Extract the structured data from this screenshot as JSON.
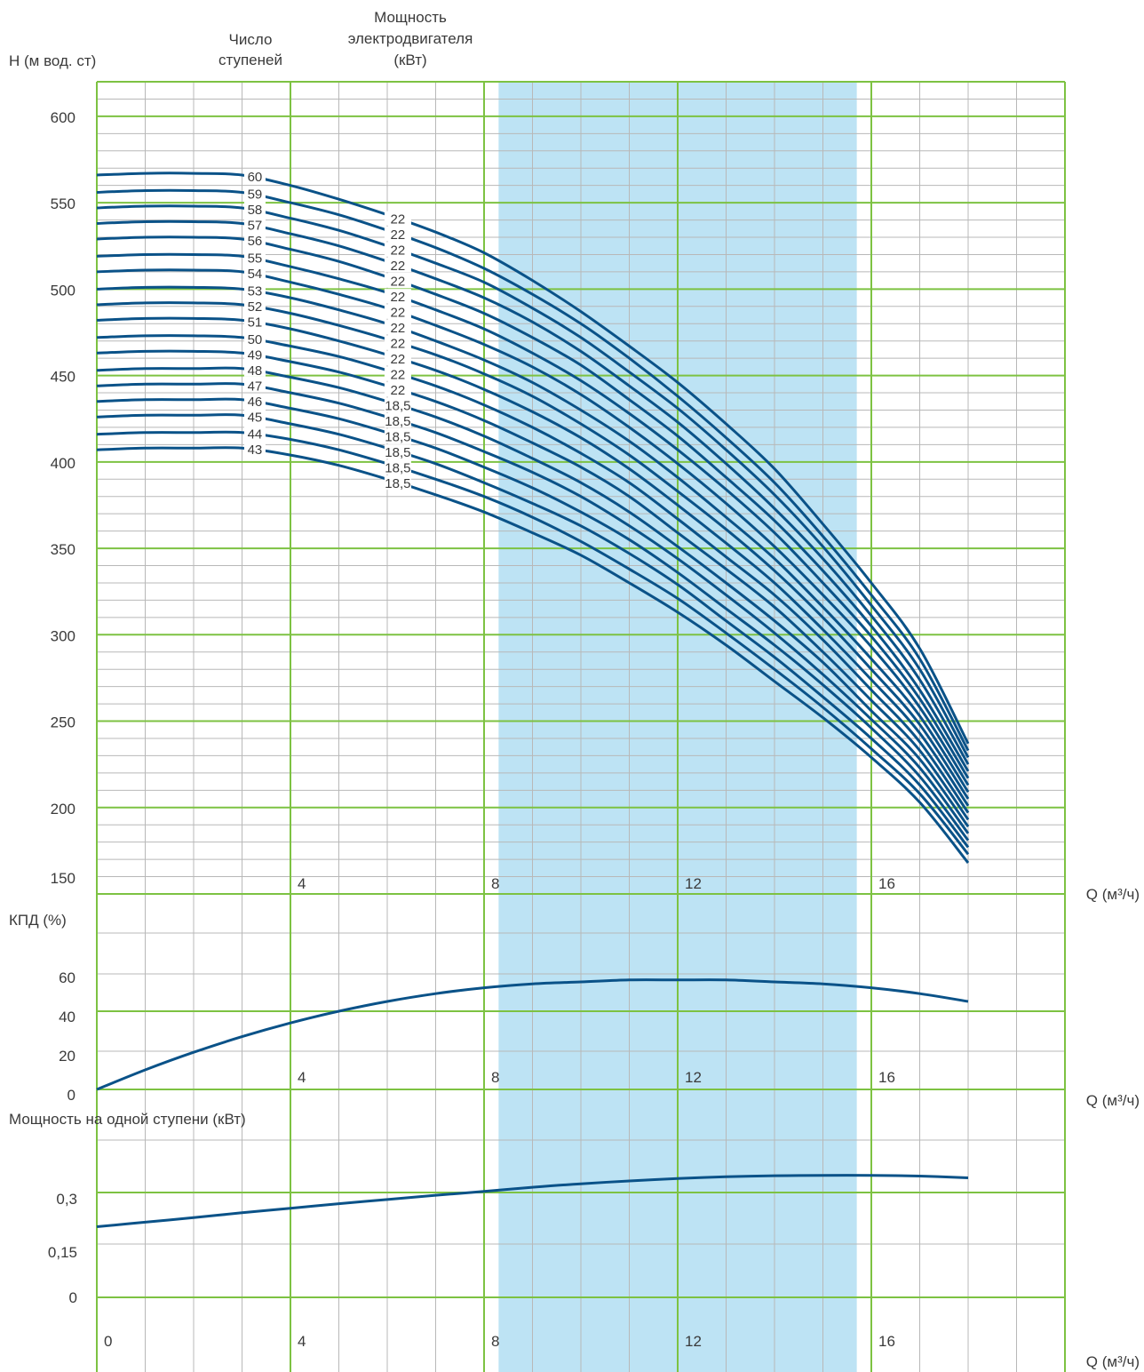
{
  "colors": {
    "curve": "#0a5288",
    "major_grid": "#7dc242",
    "minor_grid": "#b8b8b8",
    "band": "#bde3f4"
  },
  "header": {
    "stages_label": [
      "Число",
      "ступеней"
    ],
    "motor_label": [
      "Мощность",
      "электродвигателя",
      "(кВт)"
    ]
  },
  "chart_data": [
    {
      "type": "line",
      "ylabel": "H (м вод. ст)",
      "xlabel": "Q (м³/ч)",
      "xlim": [
        0,
        20
      ],
      "ylim": [
        150,
        620
      ],
      "grid": true,
      "recommended_range": [
        8.3,
        15.7
      ],
      "y_ticks": [
        600,
        550,
        500,
        450,
        400,
        350,
        300,
        250,
        200,
        150
      ],
      "x_tick_labels": [
        "4",
        "8",
        "12",
        "16"
      ],
      "curve_x": [
        0,
        1,
        2,
        3,
        4,
        5,
        6,
        7,
        8,
        9,
        10,
        11,
        12,
        13,
        14,
        15,
        16,
        17,
        18
      ],
      "series": [
        {
          "name": "60",
          "motor_kw": "22",
          "values": [
            566,
            567,
            567,
            566,
            560,
            552,
            543,
            533,
            521,
            505,
            487,
            467,
            446,
            422,
            396,
            364,
            330,
            292,
            237
          ]
        },
        {
          "name": "59",
          "motor_kw": "22",
          "values": [
            556,
            557,
            557,
            556,
            550,
            543,
            534,
            524,
            512,
            497,
            480,
            460,
            438,
            414,
            388,
            357,
            323,
            286,
            233
          ]
        },
        {
          "name": "58",
          "motor_kw": "22",
          "values": [
            547,
            548,
            548,
            547,
            541,
            534,
            525,
            515,
            504,
            489,
            472,
            452,
            431,
            407,
            381,
            351,
            317,
            280,
            229
          ]
        },
        {
          "name": "57",
          "motor_kw": "22",
          "values": [
            538,
            539,
            539,
            538,
            532,
            525,
            516,
            506,
            495,
            481,
            464,
            444,
            423,
            399,
            373,
            344,
            311,
            274,
            225
          ]
        },
        {
          "name": "56",
          "motor_kw": "22",
          "values": [
            529,
            530,
            530,
            529,
            523,
            516,
            507,
            497,
            486,
            472,
            456,
            436,
            415,
            391,
            366,
            337,
            305,
            268,
            221
          ]
        },
        {
          "name": "55",
          "motor_kw": "22",
          "values": [
            519,
            520,
            520,
            519,
            513,
            506,
            498,
            488,
            477,
            463,
            447,
            428,
            407,
            384,
            359,
            330,
            299,
            263,
            217
          ]
        },
        {
          "name": "54",
          "motor_kw": "22",
          "values": [
            510,
            511,
            511,
            510,
            504,
            497,
            489,
            479,
            468,
            455,
            439,
            420,
            399,
            376,
            351,
            323,
            293,
            258,
            213
          ]
        },
        {
          "name": "53",
          "motor_kw": "22",
          "values": [
            500,
            501,
            501,
            500,
            495,
            488,
            480,
            470,
            459,
            446,
            430,
            412,
            391,
            368,
            344,
            316,
            286,
            253,
            209
          ]
        },
        {
          "name": "52",
          "motor_kw": "22",
          "values": [
            491,
            492,
            492,
            491,
            486,
            479,
            471,
            462,
            451,
            438,
            422,
            404,
            383,
            361,
            337,
            310,
            280,
            248,
            205
          ]
        },
        {
          "name": "51",
          "motor_kw": "22",
          "values": [
            482,
            483,
            483,
            482,
            477,
            470,
            462,
            453,
            442,
            429,
            414,
            396,
            375,
            353,
            330,
            303,
            274,
            243,
            201
          ]
        },
        {
          "name": "50",
          "motor_kw": "22",
          "values": [
            472,
            473,
            473,
            472,
            467,
            461,
            453,
            444,
            433,
            420,
            405,
            388,
            367,
            345,
            323,
            297,
            268,
            238,
            197
          ]
        },
        {
          "name": "49",
          "motor_kw": "22",
          "values": [
            463,
            464,
            464,
            463,
            458,
            452,
            444,
            435,
            424,
            411,
            397,
            380,
            359,
            338,
            316,
            290,
            262,
            233,
            193
          ]
        },
        {
          "name": "48",
          "motor_kw": "18,5",
          "values": [
            453,
            454,
            454,
            454,
            449,
            443,
            435,
            426,
            415,
            402,
            388,
            371,
            351,
            330,
            308,
            284,
            256,
            228,
            189
          ]
        },
        {
          "name": "47",
          "motor_kw": "18,5",
          "values": [
            444,
            445,
            445,
            445,
            440,
            434,
            426,
            417,
            406,
            394,
            380,
            363,
            344,
            323,
            301,
            277,
            251,
            223,
            185
          ]
        },
        {
          "name": "46",
          "motor_kw": "18,5",
          "values": [
            435,
            436,
            436,
            436,
            431,
            425,
            417,
            408,
            397,
            385,
            371,
            355,
            336,
            315,
            294,
            271,
            246,
            218,
            181
          ]
        },
        {
          "name": "45",
          "motor_kw": "18,5",
          "values": [
            426,
            427,
            427,
            427,
            422,
            416,
            408,
            399,
            388,
            376,
            363,
            347,
            329,
            308,
            287,
            264,
            240,
            213,
            177
          ]
        },
        {
          "name": "44",
          "motor_kw": "18,5",
          "values": [
            416,
            417,
            417,
            417,
            413,
            407,
            399,
            390,
            380,
            368,
            354,
            338,
            321,
            301,
            280,
            258,
            234,
            208,
            173
          ]
        },
        {
          "name": "43",
          "motor_kw": "18,5",
          "values": [
            407,
            408,
            408,
            408,
            404,
            398,
            390,
            381,
            371,
            359,
            346,
            330,
            313,
            294,
            273,
            252,
            229,
            203,
            168
          ]
        }
      ]
    },
    {
      "type": "line",
      "ylabel": "КПД (%)",
      "xlabel": "Q (м³/ч)",
      "xlim": [
        0,
        20
      ],
      "ylim": [
        0,
        80
      ],
      "grid": true,
      "y_ticks": [
        "60",
        "40",
        "20",
        "0"
      ],
      "x_tick_labels": [
        "4",
        "8",
        "12",
        "16"
      ],
      "x": [
        0,
        1,
        2,
        3,
        4,
        5,
        6,
        7,
        8,
        9,
        10,
        11,
        12,
        13,
        14,
        15,
        16,
        17,
        18
      ],
      "values": [
        0,
        10,
        19,
        27,
        34,
        40,
        45,
        49,
        52,
        54,
        55,
        56,
        56,
        56,
        55,
        54,
        52,
        49,
        45
      ]
    },
    {
      "type": "line",
      "ylabel": "Мощность на одной ступени (кВт)",
      "xlabel": "Q (м³/ч)",
      "xlim": [
        0,
        20
      ],
      "ylim": [
        0,
        0.45
      ],
      "grid": true,
      "y_ticks": [
        "0,3",
        "0,15",
        "0"
      ],
      "x_tick_labels": [
        "0",
        "4",
        "8",
        "12",
        "16"
      ],
      "x": [
        0,
        1,
        2,
        3,
        4,
        5,
        6,
        7,
        8,
        9,
        10,
        11,
        12,
        13,
        14,
        15,
        16,
        17,
        18
      ],
      "values": [
        0.202,
        0.215,
        0.228,
        0.242,
        0.255,
        0.268,
        0.28,
        0.292,
        0.303,
        0.315,
        0.325,
        0.333,
        0.34,
        0.345,
        0.348,
        0.349,
        0.349,
        0.347,
        0.342
      ]
    }
  ]
}
